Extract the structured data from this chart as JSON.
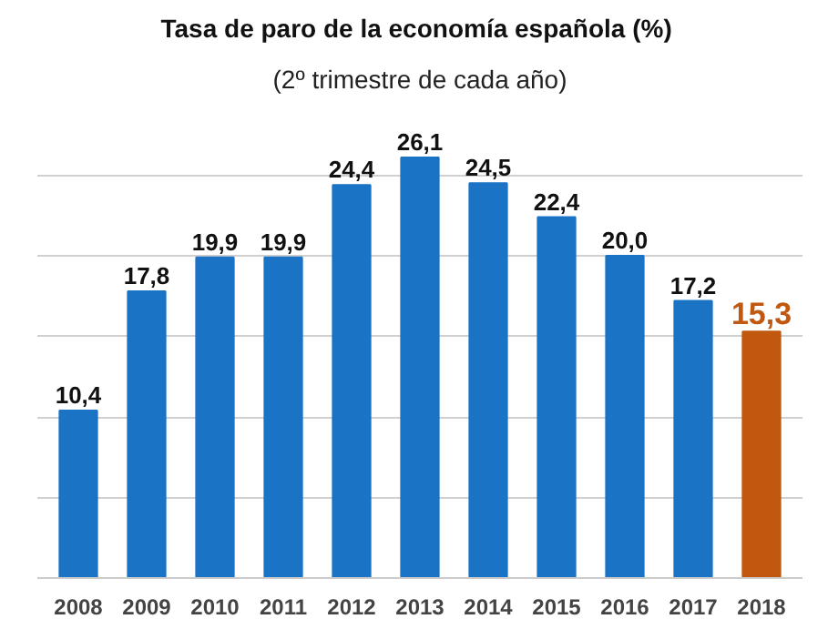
{
  "chart_data": {
    "type": "bar",
    "title": "Tasa de paro  de la economía española (%)",
    "subtitle": "(2º trimestre de cada año)",
    "categories": [
      "2008",
      "2009",
      "2010",
      "2011",
      "2012",
      "2013",
      "2014",
      "2015",
      "2016",
      "2017",
      "2018"
    ],
    "values": [
      10.4,
      17.8,
      19.9,
      19.9,
      24.4,
      26.1,
      24.5,
      22.4,
      20.0,
      17.2,
      15.3
    ],
    "colors": [
      "#1a73c4",
      "#1a73c4",
      "#1a73c4",
      "#1a73c4",
      "#1a73c4",
      "#1a73c4",
      "#1a73c4",
      "#1a73c4",
      "#1a73c4",
      "#1a73c4",
      "#c0580f"
    ],
    "value_labels": [
      "10,4",
      "17,8",
      "19,9",
      "19,9",
      "24,4",
      "26,1",
      "24,5",
      "22,4",
      "20,0",
      "17,2",
      "15,3"
    ],
    "yticks": [
      {
        "value": 0,
        "label": null
      },
      {
        "value": 5,
        "label": null
      },
      {
        "value": 10,
        "label": null
      },
      {
        "value": 15,
        "label": null
      },
      {
        "value": 20,
        "label": null
      },
      {
        "value": 25,
        "label": null
      }
    ],
    "grid": "y",
    "tick_labels": "x"
  }
}
